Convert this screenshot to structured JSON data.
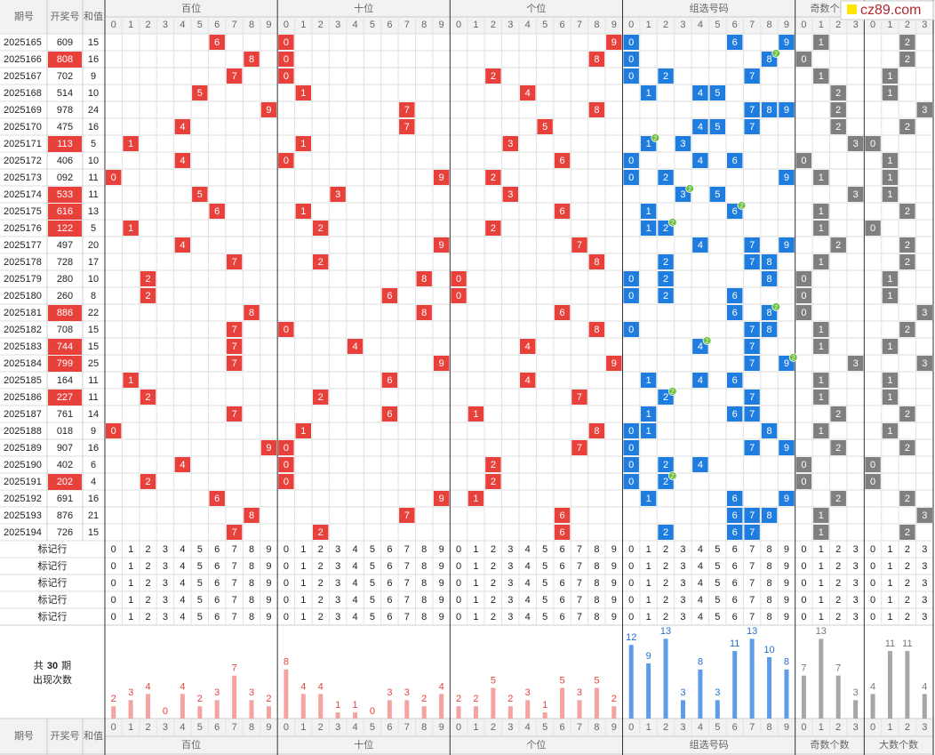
{
  "header": {
    "issue": "期号",
    "number": "开奖号",
    "sum": "和值"
  },
  "logo": "cz89.com",
  "columns": {
    "digits": [
      0,
      1,
      2,
      3,
      4,
      5,
      6,
      7,
      8,
      9
    ],
    "counts": [
      0,
      1,
      2,
      3
    ]
  },
  "sections": [
    {
      "name": "百位",
      "counts": [
        2,
        3,
        4,
        0,
        4,
        2,
        3,
        7,
        3,
        2
      ]
    },
    {
      "name": "十位",
      "counts": [
        8,
        4,
        4,
        1,
        1,
        0,
        3,
        3,
        2,
        4
      ]
    },
    {
      "name": "个位",
      "counts": [
        2,
        2,
        5,
        2,
        3,
        1,
        5,
        3,
        5,
        2
      ]
    },
    {
      "name": "组选号码",
      "counts": [
        12,
        9,
        13,
        3,
        8,
        3,
        11,
        13,
        10,
        8
      ]
    },
    {
      "name": "奇数个数",
      "counts": [
        7,
        13,
        7,
        3
      ]
    },
    {
      "name": "大数个数",
      "counts": [
        4,
        11,
        11,
        4
      ]
    }
  ],
  "rows": [
    {
      "issue": "2025165",
      "number": "609",
      "sum": 15,
      "digits": [
        6,
        0,
        9
      ],
      "group": [
        0,
        6,
        9
      ],
      "repeat": null,
      "odd": 1,
      "big": 2
    },
    {
      "issue": "2025166",
      "number": "808",
      "sum": 16,
      "digits": [
        8,
        0,
        8
      ],
      "group": [
        0,
        8
      ],
      "repeat": {
        "digit": 8,
        "count": 2
      },
      "odd": 0,
      "big": 2
    },
    {
      "issue": "2025167",
      "number": "702",
      "sum": 9,
      "digits": [
        7,
        0,
        2
      ],
      "group": [
        0,
        2,
        7
      ],
      "repeat": null,
      "odd": 1,
      "big": 1
    },
    {
      "issue": "2025168",
      "number": "514",
      "sum": 10,
      "digits": [
        5,
        1,
        4
      ],
      "group": [
        1,
        4,
        5
      ],
      "repeat": null,
      "odd": 2,
      "big": 1
    },
    {
      "issue": "2025169",
      "number": "978",
      "sum": 24,
      "digits": [
        9,
        7,
        8
      ],
      "group": [
        7,
        8,
        9
      ],
      "repeat": null,
      "odd": 2,
      "big": 3
    },
    {
      "issue": "2025170",
      "number": "475",
      "sum": 16,
      "digits": [
        4,
        7,
        5
      ],
      "group": [
        4,
        5,
        7
      ],
      "repeat": null,
      "odd": 2,
      "big": 2
    },
    {
      "issue": "2025171",
      "number": "113",
      "sum": 5,
      "digits": [
        1,
        1,
        3
      ],
      "group": [
        1,
        3
      ],
      "repeat": {
        "digit": 1,
        "count": 2
      },
      "odd": 3,
      "big": 0
    },
    {
      "issue": "2025172",
      "number": "406",
      "sum": 10,
      "digits": [
        4,
        0,
        6
      ],
      "group": [
        0,
        4,
        6
      ],
      "repeat": null,
      "odd": 0,
      "big": 1
    },
    {
      "issue": "2025173",
      "number": "092",
      "sum": 11,
      "digits": [
        0,
        9,
        2
      ],
      "group": [
        0,
        2,
        9
      ],
      "repeat": null,
      "odd": 1,
      "big": 1
    },
    {
      "issue": "2025174",
      "number": "533",
      "sum": 11,
      "digits": [
        5,
        3,
        3
      ],
      "group": [
        3,
        5
      ],
      "repeat": {
        "digit": 3,
        "count": 2
      },
      "odd": 3,
      "big": 1
    },
    {
      "issue": "2025175",
      "number": "616",
      "sum": 13,
      "digits": [
        6,
        1,
        6
      ],
      "group": [
        1,
        6
      ],
      "repeat": {
        "digit": 6,
        "count": 2
      },
      "odd": 1,
      "big": 2
    },
    {
      "issue": "2025176",
      "number": "122",
      "sum": 5,
      "digits": [
        1,
        2,
        2
      ],
      "group": [
        1,
        2
      ],
      "repeat": {
        "digit": 2,
        "count": 2
      },
      "odd": 1,
      "big": 0
    },
    {
      "issue": "2025177",
      "number": "497",
      "sum": 20,
      "digits": [
        4,
        9,
        7
      ],
      "group": [
        4,
        7,
        9
      ],
      "repeat": null,
      "odd": 2,
      "big": 2
    },
    {
      "issue": "2025178",
      "number": "728",
      "sum": 17,
      "digits": [
        7,
        2,
        8
      ],
      "group": [
        2,
        7,
        8
      ],
      "repeat": null,
      "odd": 1,
      "big": 2
    },
    {
      "issue": "2025179",
      "number": "280",
      "sum": 10,
      "digits": [
        2,
        8,
        0
      ],
      "group": [
        0,
        2,
        8
      ],
      "repeat": null,
      "odd": 0,
      "big": 1
    },
    {
      "issue": "2025180",
      "number": "260",
      "sum": 8,
      "digits": [
        2,
        6,
        0
      ],
      "group": [
        0,
        2,
        6
      ],
      "repeat": null,
      "odd": 0,
      "big": 1
    },
    {
      "issue": "2025181",
      "number": "886",
      "sum": 22,
      "digits": [
        8,
        8,
        6
      ],
      "group": [
        6,
        8
      ],
      "repeat": {
        "digit": 8,
        "count": 2
      },
      "odd": 0,
      "big": 3
    },
    {
      "issue": "2025182",
      "number": "708",
      "sum": 15,
      "digits": [
        7,
        0,
        8
      ],
      "group": [
        0,
        7,
        8
      ],
      "repeat": null,
      "odd": 1,
      "big": 2
    },
    {
      "issue": "2025183",
      "number": "744",
      "sum": 15,
      "digits": [
        7,
        4,
        4
      ],
      "group": [
        4,
        7
      ],
      "repeat": {
        "digit": 4,
        "count": 2
      },
      "odd": 1,
      "big": 1
    },
    {
      "issue": "2025184",
      "number": "799",
      "sum": 25,
      "digits": [
        7,
        9,
        9
      ],
      "group": [
        7,
        9
      ],
      "repeat": {
        "digit": 9,
        "count": 2
      },
      "odd": 3,
      "big": 3
    },
    {
      "issue": "2025185",
      "number": "164",
      "sum": 11,
      "digits": [
        1,
        6,
        4
      ],
      "group": [
        1,
        4,
        6
      ],
      "repeat": null,
      "odd": 1,
      "big": 1
    },
    {
      "issue": "2025186",
      "number": "227",
      "sum": 11,
      "digits": [
        2,
        2,
        7
      ],
      "group": [
        2,
        7
      ],
      "repeat": {
        "digit": 2,
        "count": 2
      },
      "odd": 1,
      "big": 1
    },
    {
      "issue": "2025187",
      "number": "761",
      "sum": 14,
      "digits": [
        7,
        6,
        1
      ],
      "group": [
        1,
        6,
        7
      ],
      "repeat": null,
      "odd": 2,
      "big": 2
    },
    {
      "issue": "2025188",
      "number": "018",
      "sum": 9,
      "digits": [
        0,
        1,
        8
      ],
      "group": [
        0,
        1,
        8
      ],
      "repeat": null,
      "odd": 1,
      "big": 1
    },
    {
      "issue": "2025189",
      "number": "907",
      "sum": 16,
      "digits": [
        9,
        0,
        7
      ],
      "group": [
        0,
        7,
        9
      ],
      "repeat": null,
      "odd": 2,
      "big": 2
    },
    {
      "issue": "2025190",
      "number": "402",
      "sum": 6,
      "digits": [
        4,
        0,
        2
      ],
      "group": [
        0,
        2,
        4
      ],
      "repeat": null,
      "odd": 0,
      "big": 0
    },
    {
      "issue": "2025191",
      "number": "202",
      "sum": 4,
      "digits": [
        2,
        0,
        2
      ],
      "group": [
        0,
        2
      ],
      "repeat": {
        "digit": 2,
        "count": 2
      },
      "odd": 0,
      "big": 0
    },
    {
      "issue": "2025192",
      "number": "691",
      "sum": 16,
      "digits": [
        6,
        9,
        1
      ],
      "group": [
        1,
        6,
        9
      ],
      "repeat": null,
      "odd": 2,
      "big": 2
    },
    {
      "issue": "2025193",
      "number": "876",
      "sum": 21,
      "digits": [
        8,
        7,
        6
      ],
      "group": [
        6,
        7,
        8
      ],
      "repeat": null,
      "odd": 1,
      "big": 3
    },
    {
      "issue": "2025194",
      "number": "726",
      "sum": 15,
      "digits": [
        7,
        2,
        6
      ],
      "group": [
        2,
        6,
        7
      ],
      "repeat": null,
      "odd": 1,
      "big": 2
    }
  ],
  "marker_rows": [
    "标记行",
    "标记行",
    "标记行",
    "标记行",
    "标记行"
  ],
  "summary": {
    "prefix": "共",
    "periods": 30,
    "suffix": "期",
    "label": "出现次数"
  }
}
